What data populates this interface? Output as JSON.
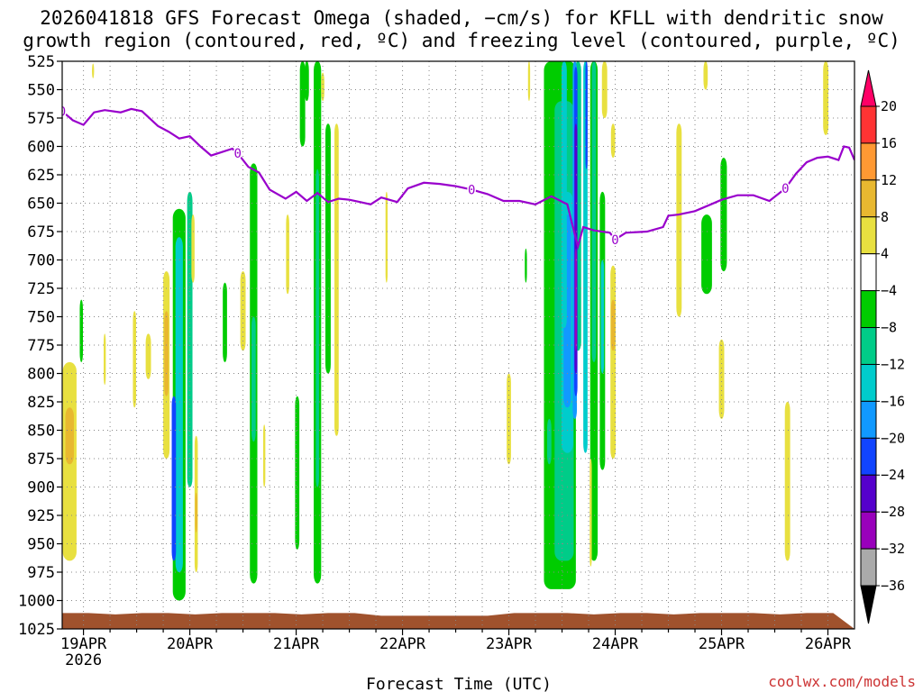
{
  "chart_data": {
    "type": "time-height contour",
    "title_line1": "2026041818 GFS Forecast Omega (shaded, −cm/s) for KFLL with dendritic snow",
    "title_line2": "growth region (contoured, red, ºC) and freezing level (contoured, purple, ºC)",
    "xlabel": "Forecast Time (UTC)",
    "ylabel": "",
    "y_ticks": [
      "525",
      "550",
      "575",
      "600",
      "625",
      "650",
      "675",
      "700",
      "725",
      "750",
      "775",
      "800",
      "825",
      "850",
      "875",
      "900",
      "925",
      "950",
      "975",
      "1000",
      "1025"
    ],
    "x_ticks": [
      "19APR",
      "20APR",
      "21APR",
      "22APR",
      "23APR",
      "24APR",
      "25APR",
      "26APR"
    ],
    "x_year": "2026",
    "x_range_days": [
      -0.2,
      7.25
    ],
    "y_range_hpa": [
      525,
      1025
    ],
    "colorbar_labels": [
      "20",
      "16",
      "12",
      "8",
      "4",
      "−4",
      "−8",
      "−12",
      "−16",
      "−20",
      "−24",
      "−28",
      "−32",
      "−36"
    ],
    "colorbar_colors": [
      "#ff0066",
      "#ff3333",
      "#ff9933",
      "#e8b830",
      "#e8e040",
      "#ffffff",
      "#00cc00",
      "#00cc88",
      "#00cccc",
      "#1199ff",
      "#1144ff",
      "#5500cc",
      "#9900bb",
      "#aaaaaa",
      "#000000"
    ],
    "freezing_level": {
      "label": "0",
      "color": "#9900cc",
      "points": [
        [
          -0.2,
          569
        ],
        [
          -0.1,
          577
        ],
        [
          0.0,
          581
        ],
        [
          0.1,
          570
        ],
        [
          0.2,
          568
        ],
        [
          0.35,
          570
        ],
        [
          0.45,
          567
        ],
        [
          0.55,
          569
        ],
        [
          0.7,
          582
        ],
        [
          0.8,
          587
        ],
        [
          0.9,
          593
        ],
        [
          1.0,
          591
        ],
        [
          1.1,
          600
        ],
        [
          1.2,
          608
        ],
        [
          1.3,
          605
        ],
        [
          1.4,
          602
        ],
        [
          1.45,
          606
        ],
        [
          1.55,
          618
        ],
        [
          1.65,
          623
        ],
        [
          1.75,
          638
        ],
        [
          1.9,
          646
        ],
        [
          2.0,
          640
        ],
        [
          2.1,
          648
        ],
        [
          2.2,
          641
        ],
        [
          2.3,
          649
        ],
        [
          2.4,
          646
        ],
        [
          2.5,
          647
        ],
        [
          2.6,
          649
        ],
        [
          2.7,
          651
        ],
        [
          2.8,
          645
        ],
        [
          2.95,
          649
        ],
        [
          3.05,
          637
        ],
        [
          3.2,
          632
        ],
        [
          3.35,
          633
        ],
        [
          3.5,
          635
        ],
        [
          3.65,
          638
        ],
        [
          3.8,
          642
        ],
        [
          3.95,
          648
        ],
        [
          4.1,
          648
        ],
        [
          4.25,
          651
        ],
        [
          4.4,
          644
        ],
        [
          4.55,
          651
        ],
        [
          4.6,
          670
        ],
        [
          4.65,
          688
        ],
        [
          4.7,
          671
        ],
        [
          4.8,
          674
        ],
        [
          4.95,
          676
        ],
        [
          5.0,
          682
        ],
        [
          5.1,
          676
        ],
        [
          5.3,
          675
        ],
        [
          5.45,
          671
        ],
        [
          5.5,
          661
        ],
        [
          5.6,
          660
        ],
        [
          5.75,
          657
        ],
        [
          5.9,
          651
        ],
        [
          6.0,
          647
        ],
        [
          6.15,
          643
        ],
        [
          6.3,
          643
        ],
        [
          6.45,
          648
        ],
        [
          6.6,
          637
        ],
        [
          6.7,
          624
        ],
        [
          6.8,
          614
        ],
        [
          6.9,
          610
        ],
        [
          7.0,
          609
        ],
        [
          7.1,
          612
        ],
        [
          7.15,
          600
        ],
        [
          7.2,
          601
        ],
        [
          7.25,
          612
        ]
      ]
    },
    "omega_regions": [
      {
        "t": -0.13,
        "p": "790-965",
        "w": 0.13,
        "color": "#e8e040"
      },
      {
        "t": -0.13,
        "p": "830-880",
        "w": 0.08,
        "color": "#e8b830"
      },
      {
        "t": -0.02,
        "p": "735-790",
        "w": 0.03,
        "color": "#00cc00"
      },
      {
        "t": 0.09,
        "p": "527-540",
        "w": 0.02,
        "color": "#e8e040"
      },
      {
        "t": 0.2,
        "p": "765-810",
        "w": 0.02,
        "color": "#e8e040"
      },
      {
        "t": 0.48,
        "p": "745-830",
        "w": 0.03,
        "color": "#e8e040"
      },
      {
        "t": 0.61,
        "p": "765-805",
        "w": 0.05,
        "color": "#e8e040"
      },
      {
        "t": 0.78,
        "p": "710-875",
        "w": 0.06,
        "color": "#e8e040"
      },
      {
        "t": 0.78,
        "p": "745-820",
        "w": 0.04,
        "color": "#e8b830"
      },
      {
        "t": 0.9,
        "p": "655-1000",
        "w": 0.12,
        "color": "#00cc00"
      },
      {
        "t": 0.9,
        "p": "680-975",
        "w": 0.07,
        "color": "#00cccc"
      },
      {
        "t": 0.85,
        "p": "820-965",
        "w": 0.04,
        "color": "#1144ff"
      },
      {
        "t": 1.0,
        "p": "640-900",
        "w": 0.05,
        "color": "#00cc88"
      },
      {
        "t": 1.03,
        "p": "660-720",
        "w": 0.03,
        "color": "#e8e040"
      },
      {
        "t": 1.06,
        "p": "855-975",
        "w": 0.03,
        "color": "#e8e040"
      },
      {
        "t": 1.06,
        "p": "905-940",
        "w": 0.02,
        "color": "#e8b830"
      },
      {
        "t": 1.33,
        "p": "720-790",
        "w": 0.04,
        "color": "#00cc00"
      },
      {
        "t": 1.5,
        "p": "710-780",
        "w": 0.05,
        "color": "#e8e040"
      },
      {
        "t": 1.6,
        "p": "615-985",
        "w": 0.07,
        "color": "#00cc00"
      },
      {
        "t": 1.6,
        "p": "750-860",
        "w": 0.04,
        "color": "#00cc88"
      },
      {
        "t": 1.7,
        "p": "845-900",
        "w": 0.02,
        "color": "#e8e040"
      },
      {
        "t": 1.92,
        "p": "660-730",
        "w": 0.03,
        "color": "#e8e040"
      },
      {
        "t": 2.01,
        "p": "820-955",
        "w": 0.04,
        "color": "#00cc00"
      },
      {
        "t": 2.06,
        "p": "525-600",
        "w": 0.05,
        "color": "#00cc00"
      },
      {
        "t": 2.1,
        "p": "525-560",
        "w": 0.04,
        "color": "#00cc00"
      },
      {
        "t": 2.2,
        "p": "525-985",
        "w": 0.07,
        "color": "#00cc00"
      },
      {
        "t": 2.2,
        "p": "620-900",
        "w": 0.03,
        "color": "#00cc88"
      },
      {
        "t": 2.3,
        "p": "580-800",
        "w": 0.05,
        "color": "#00cc00"
      },
      {
        "t": 2.38,
        "p": "580-855",
        "w": 0.04,
        "color": "#e8e040"
      },
      {
        "t": 2.25,
        "p": "535-560",
        "w": 0.03,
        "color": "#e8e040"
      },
      {
        "t": 2.85,
        "p": "640-720",
        "w": 0.02,
        "color": "#e8e040"
      },
      {
        "t": 4.0,
        "p": "800-880",
        "w": 0.04,
        "color": "#e8e040"
      },
      {
        "t": 4.16,
        "p": "690-720",
        "w": 0.02,
        "color": "#00cc00"
      },
      {
        "t": 4.19,
        "p": "525-560",
        "w": 0.02,
        "color": "#e8e040"
      },
      {
        "t": 4.48,
        "p": "525-990",
        "w": 0.3,
        "color": "#00cc00"
      },
      {
        "t": 4.52,
        "p": "560-965",
        "w": 0.18,
        "color": "#00cc88"
      },
      {
        "t": 4.55,
        "p": "640-870",
        "w": 0.11,
        "color": "#00cccc"
      },
      {
        "t": 4.55,
        "p": "660-830",
        "w": 0.07,
        "color": "#1199ff"
      },
      {
        "t": 4.52,
        "p": "525-760",
        "w": 0.05,
        "color": "#00cccc"
      },
      {
        "t": 4.38,
        "p": "840-880",
        "w": 0.04,
        "color": "#00cc88"
      },
      {
        "t": 4.65,
        "p": "525-780",
        "w": 0.06,
        "color": "#00cc88"
      },
      {
        "t": 4.62,
        "p": "525-840",
        "w": 0.04,
        "color": "#1199ff"
      },
      {
        "t": 4.63,
        "p": "530-820",
        "w": 0.03,
        "color": "#1144ff"
      },
      {
        "t": 4.63,
        "p": "580-800",
        "w": 0.025,
        "color": "#5500cc"
      },
      {
        "t": 4.63,
        "p": "690-780",
        "w": 0.02,
        "color": "#9900bb"
      },
      {
        "t": 4.72,
        "p": "525-870",
        "w": 0.04,
        "color": "#00cccc"
      },
      {
        "t": 4.73,
        "p": "525-620",
        "w": 0.02,
        "color": "#1144ff"
      },
      {
        "t": 4.8,
        "p": "525-965",
        "w": 0.07,
        "color": "#00cc00"
      },
      {
        "t": 4.8,
        "p": "525-790",
        "w": 0.04,
        "color": "#00cc88"
      },
      {
        "t": 4.77,
        "p": "875-970",
        "w": 0.02,
        "color": "#e8e040"
      },
      {
        "t": 4.88,
        "p": "640-885",
        "w": 0.05,
        "color": "#00cc00"
      },
      {
        "t": 4.88,
        "p": "700-800",
        "w": 0.03,
        "color": "#00cccc"
      },
      {
        "t": 4.9,
        "p": "525-575",
        "w": 0.05,
        "color": "#e8e040"
      },
      {
        "t": 4.98,
        "p": "580-610",
        "w": 0.04,
        "color": "#e8e040"
      },
      {
        "t": 4.98,
        "p": "705-875",
        "w": 0.05,
        "color": "#e8e040"
      },
      {
        "t": 4.98,
        "p": "735-780",
        "w": 0.04,
        "color": "#e8b830"
      },
      {
        "t": 5.6,
        "p": "580-750",
        "w": 0.05,
        "color": "#e8e040"
      },
      {
        "t": 5.85,
        "p": "525-550",
        "w": 0.04,
        "color": "#e8e040"
      },
      {
        "t": 5.86,
        "p": "660-730",
        "w": 0.1,
        "color": "#00cc00"
      },
      {
        "t": 6.02,
        "p": "610-710",
        "w": 0.06,
        "color": "#00cc00"
      },
      {
        "t": 6.0,
        "p": "770-840",
        "w": 0.05,
        "color": "#e8e040"
      },
      {
        "t": 6.62,
        "p": "825-965",
        "w": 0.05,
        "color": "#e8e040"
      },
      {
        "t": 6.98,
        "p": "525-590",
        "w": 0.05,
        "color": "#e8e040"
      }
    ]
  },
  "credit": "coolwx.com/models",
  "credit_color": "#cc3333",
  "ground_color": "#a0522d"
}
